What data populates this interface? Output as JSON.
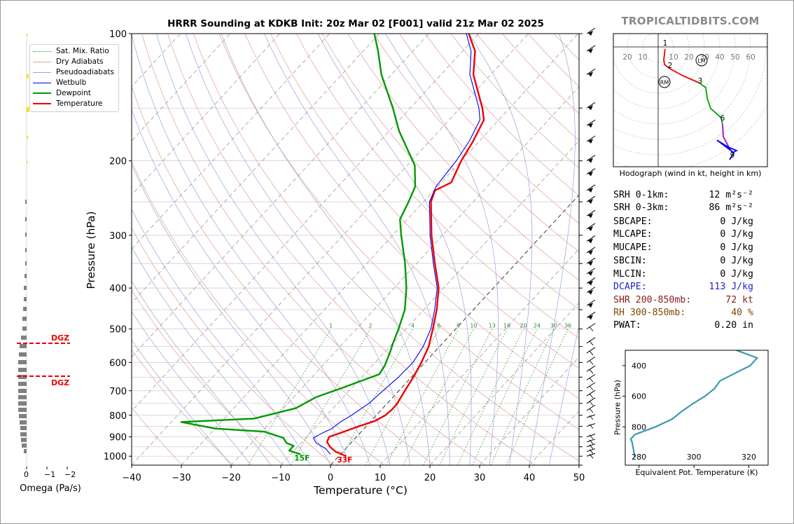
{
  "header": {
    "title": "HRRR Sounding at KDKB Init: 20z Mar 02 [F001] valid 21z Mar 02 2025",
    "brand": "TROPICALTIDBITS.COM"
  },
  "legend": [
    {
      "label": "Sat. Mix. Ratio",
      "color": "#2e8b2e",
      "style": "dotted"
    },
    {
      "label": "Dry Adiabats",
      "color": "#e07b7b",
      "style": "solid-thin"
    },
    {
      "label": "Pseudoadiabats",
      "color": "#8a8ad8",
      "style": "solid-thin"
    },
    {
      "label": "Wetbulb",
      "color": "#0000ee",
      "style": "solid"
    },
    {
      "label": "Dewpoint",
      "color": "#009900",
      "style": "thick"
    },
    {
      "label": "Temperature",
      "color": "#ee0000",
      "style": "thick"
    }
  ],
  "chart_data": [
    {
      "type": "line",
      "name": "skew-t",
      "xlabel": "Temperature (°C)",
      "ylabel": "Pressure (hPa)",
      "xlim": [
        -40,
        50
      ],
      "ylim": [
        1050,
        100
      ],
      "y_scale": "log",
      "x_ticks": [
        -40,
        -30,
        -20,
        -10,
        0,
        10,
        20,
        30,
        40,
        50
      ],
      "x_tick_labels": [
        "−40",
        "−30",
        "−20",
        "−10",
        "0",
        "10",
        "20",
        "30",
        "40",
        "50"
      ],
      "y_ticks": [
        100,
        200,
        300,
        400,
        500,
        600,
        700,
        800,
        900,
        1000
      ],
      "y_tick_labels": [
        "100",
        "200",
        "300",
        "400",
        "500",
        "600",
        "700",
        "800",
        "900",
        "1000"
      ],
      "mixing_ratio_labels": [
        "1",
        "2",
        "4",
        "6",
        "8",
        "10",
        "13",
        "16",
        "20",
        "24",
        "30",
        "36"
      ],
      "mixing_ratio_values": [
        1,
        2,
        4,
        6,
        8,
        10,
        13,
        16,
        20,
        24,
        30,
        36
      ],
      "series": [
        {
          "name": "Temperature",
          "color": "#ee0000",
          "points": [
            [
              1000,
              1.5
            ],
            [
              975,
              -1.5
            ],
            [
              950,
              -3.5
            ],
            [
              925,
              -5.0
            ],
            [
              900,
              -5.5
            ],
            [
              875,
              -3.5
            ],
            [
              850,
              -1.5
            ],
            [
              825,
              0.8
            ],
            [
              800,
              1.8
            ],
            [
              775,
              2.1
            ],
            [
              750,
              2.0
            ],
            [
              700,
              1.2
            ],
            [
              650,
              0.4
            ],
            [
              600,
              -0.7
            ],
            [
              550,
              -2.2
            ],
            [
              500,
              -4.6
            ],
            [
              450,
              -7.4
            ],
            [
              400,
              -11.0
            ],
            [
              350,
              -16.3
            ],
            [
              300,
              -22.2
            ],
            [
              250,
              -28.5
            ],
            [
              235,
              -29.8
            ],
            [
              225,
              -28.0
            ],
            [
              200,
              -30.0
            ],
            [
              180,
              -31.2
            ],
            [
              160,
              -33.0
            ],
            [
              150,
              -35.5
            ],
            [
              125,
              -43.5
            ],
            [
              110,
              -47.5
            ],
            [
              100,
              -52.0
            ]
          ]
        },
        {
          "name": "Dewpoint",
          "color": "#009900",
          "points": [
            [
              990,
              -8.0
            ],
            [
              970,
              -11.0
            ],
            [
              945,
              -11.0
            ],
            [
              930,
              -13.0
            ],
            [
              905,
              -14.5
            ],
            [
              875,
              -19.5
            ],
            [
              860,
              -30.0
            ],
            [
              830,
              -38.0
            ],
            [
              815,
              -24.0
            ],
            [
              770,
              -17.5
            ],
            [
              725,
              -15.5
            ],
            [
              690,
              -12.0
            ],
            [
              640,
              -7.0
            ],
            [
              610,
              -7.5
            ],
            [
              565,
              -9.0
            ],
            [
              540,
              -10.0
            ],
            [
              500,
              -11.5
            ],
            [
              450,
              -13.8
            ],
            [
              400,
              -17.5
            ],
            [
              350,
              -22.3
            ],
            [
              300,
              -28.3
            ],
            [
              275,
              -31.5
            ],
            [
              250,
              -33.0
            ],
            [
              230,
              -34.5
            ],
            [
              205,
              -38.5
            ],
            [
              170,
              -48.0
            ],
            [
              150,
              -53.5
            ],
            [
              125,
              -62.0
            ],
            [
              110,
              -67.0
            ],
            [
              100,
              -71.0
            ]
          ]
        },
        {
          "name": "Wetbulb",
          "color": "#0000ee",
          "points": [
            [
              990,
              -2.0
            ],
            [
              960,
              -4.0
            ],
            [
              930,
              -7.0
            ],
            [
              905,
              -8.5
            ],
            [
              880,
              -7.5
            ],
            [
              860,
              -6.5
            ],
            [
              830,
              -6.0
            ],
            [
              800,
              -5.0
            ],
            [
              750,
              -3.7
            ],
            [
              700,
              -3.2
            ],
            [
              650,
              -2.6
            ],
            [
              600,
              -2.4
            ],
            [
              550,
              -3.3
            ],
            [
              500,
              -5.0
            ],
            [
              450,
              -7.8
            ],
            [
              400,
              -11.3
            ],
            [
              350,
              -16.6
            ],
            [
              300,
              -22.5
            ],
            [
              250,
              -28.8
            ],
            [
              230,
              -30.3
            ],
            [
              200,
              -31.0
            ],
            [
              180,
              -32.0
            ],
            [
              160,
              -33.8
            ],
            [
              150,
              -36.2
            ],
            [
              125,
              -44.2
            ],
            [
              110,
              -48.3
            ],
            [
              100,
              -52.5
            ]
          ]
        }
      ],
      "surface_labels": {
        "dewpoint": "15F",
        "temperature": "33F"
      }
    },
    {
      "type": "line",
      "name": "omega",
      "xlabel": "Omega (Pa/s)",
      "xlim": [
        0,
        -2
      ],
      "x_ticks": [
        0,
        -1,
        -2
      ],
      "x_tick_labels": [
        "0",
        "−1",
        "−2"
      ],
      "dgz_label": "DGZ",
      "dgz_color": "#ee0000"
    },
    {
      "type": "line",
      "name": "hodograph",
      "caption": "Hodograph (wind in kt, height in km)",
      "ring_labels": [
        "20",
        "10",
        "10",
        "20",
        "30",
        "40",
        "50",
        "60"
      ],
      "height_labels": [
        "1",
        "2",
        "3",
        "6",
        "9"
      ],
      "markers": [
        "LM",
        "RM"
      ]
    },
    {
      "type": "line",
      "name": "equivalent potential temperature",
      "xlabel": "Equivalent Pot. Temperature (K)",
      "ylabel": "Pressure (hPa)",
      "xlim": [
        275,
        327
      ],
      "x_ticks": [
        280,
        300,
        320
      ],
      "x_tick_labels": [
        "280",
        "300",
        "320"
      ],
      "y_ticks": [
        400,
        600,
        800
      ],
      "y_tick_labels": [
        "400",
        "600",
        "800"
      ],
      "color": "#3a9ab0",
      "points": [
        [
          100,
          311
        ],
        [
          300,
          315.5
        ],
        [
          350,
          323.0
        ],
        [
          400,
          320.5
        ],
        [
          500,
          309.5
        ],
        [
          550,
          307.5
        ],
        [
          600,
          304.0
        ],
        [
          650,
          299.5
        ],
        [
          700,
          295.5
        ],
        [
          750,
          292.0
        ],
        [
          800,
          286.0
        ],
        [
          850,
          278.5
        ],
        [
          880,
          277.0
        ],
        [
          900,
          277.5
        ],
        [
          950,
          278.0
        ],
        [
          1000,
          278.5
        ]
      ]
    }
  ],
  "params": [
    {
      "label": "SRH 0-1km:",
      "value": "12 m²s⁻²",
      "color": "#000000"
    },
    {
      "label": "SRH 0-3km:",
      "value": "86 m²s⁻²",
      "color": "#000000"
    },
    {
      "label": "SBCAPE:",
      "value": "0 J/kg",
      "color": "#000000"
    },
    {
      "label": "MLCAPE:",
      "value": "0 J/kg",
      "color": "#000000"
    },
    {
      "label": "MUCAPE:",
      "value": "0 J/kg",
      "color": "#000000"
    },
    {
      "label": "SBCIN:",
      "value": "0 J/kg",
      "color": "#000000"
    },
    {
      "label": "MLCIN:",
      "value": "0 J/kg",
      "color": "#000000"
    },
    {
      "label": "DCAPE:",
      "value": "113 J/kg",
      "color": "#2222cc"
    },
    {
      "label": "SHR 200-850mb:",
      "value": "72 kt",
      "color": "#8b1a1a"
    },
    {
      "label": "RH 300-850mb:",
      "value": "40 %",
      "color": "#7a4a00"
    },
    {
      "label": "PWAT:",
      "value": "0.20 in",
      "color": "#000000"
    }
  ]
}
